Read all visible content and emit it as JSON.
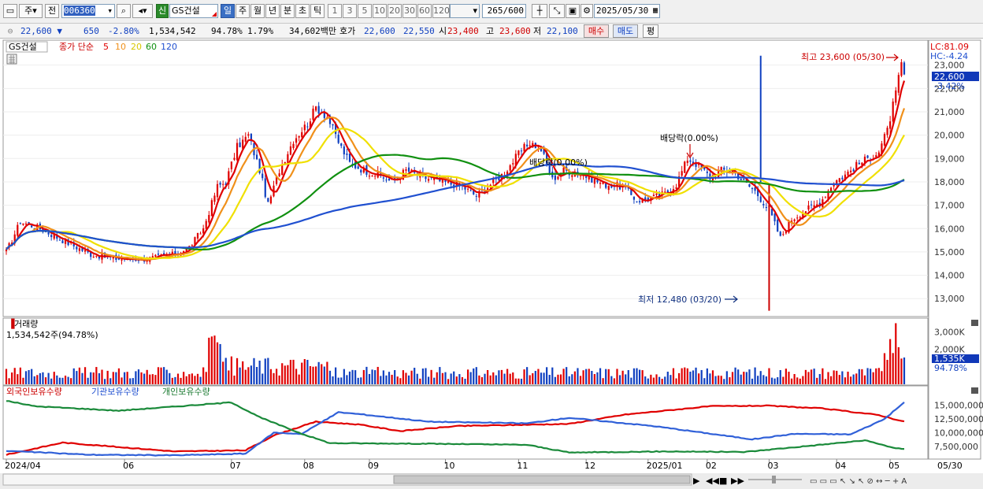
{
  "toolbar": {
    "market_label": "주",
    "prev_label": "전",
    "code_value": "006360",
    "new_badge": "신",
    "stock_name": "GS건설",
    "periods": [
      "일",
      "주",
      "월",
      "년",
      "분",
      "초",
      "틱"
    ],
    "selected_period": "일",
    "intervals": [
      "1",
      "3",
      "5",
      "10",
      "20",
      "30",
      "60",
      "120"
    ],
    "count_value": "265",
    "count_total": "/600",
    "date_value": "2025/05/30"
  },
  "info": {
    "price": "22,600",
    "change_arrow": "▼",
    "change": "650",
    "change_pct": "-2.80%",
    "volume": "1,534,542",
    "volume_ratio": "94.78%",
    "turnover": "1.79%",
    "amount": "34,602백만",
    "quote_label": "호가",
    "ask": "22,600",
    "bid": "22,550",
    "open_label": "시",
    "open": "23,400",
    "high_label": "고",
    "high": "23,600",
    "low_label": "저",
    "low": "22,100",
    "buy_button": "매수",
    "sell_button": "매도",
    "eval_button": "평"
  },
  "legend": {
    "stock": "GS건설",
    "close_label": "종가 단순",
    "ma_labels": [
      "5",
      "10",
      "20",
      "60",
      "120"
    ]
  },
  "colors": {
    "ma5": "#e00000",
    "ma10": "#f0901a",
    "ma20": "#f0e000",
    "ma60": "#109010",
    "ma120": "#2050d0",
    "up": "#e00000",
    "down": "#1040c0",
    "foreign": "#e00000",
    "institution": "#3060d8",
    "individual": "#1a8a3a"
  },
  "right_axis": {
    "lc": "LC:81.09",
    "hc": "HC:-4.24",
    "price_tag": "22,600",
    "pct_tag": "-3.42%",
    "vol_tag": "1,535K",
    "vol_pct_tag": "94.78%"
  },
  "annotations": {
    "high_text": "최고 23,600 (05/30)",
    "low_text": "최저 12,480 (03/20)",
    "dividend1": "배당락(0.00%)",
    "dividend2": "배당락(0.00%)"
  },
  "volume_panel": {
    "title": "거래량",
    "value_text": "1,534,542주(94.78%)"
  },
  "holding_panel": {
    "foreign": "외국인보유수량",
    "institution": "기관보유수량",
    "individual": "개인보유수량"
  },
  "xaxis_end_label": "05/30",
  "chart_data": {
    "type": "candlestick",
    "price": {
      "axis_ticks": [
        "13,000",
        "14,000",
        "15,000",
        "16,000",
        "17,000",
        "18,000",
        "19,000",
        "20,000",
        "21,000",
        "22,000",
        "23,000"
      ],
      "ylim": [
        12300,
        24000
      ],
      "close_anchors": [
        [
          0,
          15000
        ],
        [
          5,
          16300
        ],
        [
          12,
          16000
        ],
        [
          20,
          15500
        ],
        [
          30,
          14900
        ],
        [
          40,
          14700
        ],
        [
          50,
          14700
        ],
        [
          60,
          14900
        ],
        [
          65,
          15200
        ],
        [
          70,
          16000
        ],
        [
          75,
          17800
        ],
        [
          78,
          18000
        ],
        [
          82,
          19500
        ],
        [
          86,
          20000
        ],
        [
          90,
          18500
        ],
        [
          93,
          17000
        ],
        [
          97,
          18500
        ],
        [
          102,
          19800
        ],
        [
          107,
          20500
        ],
        [
          110,
          21200
        ],
        [
          114,
          20800
        ],
        [
          118,
          19700
        ],
        [
          122,
          18800
        ],
        [
          127,
          18500
        ],
        [
          132,
          18300
        ],
        [
          137,
          18000
        ],
        [
          142,
          18500
        ],
        [
          148,
          18200
        ],
        [
          155,
          18000
        ],
        [
          162,
          17800
        ],
        [
          167,
          17400
        ],
        [
          172,
          17900
        ],
        [
          177,
          18400
        ],
        [
          182,
          19200
        ],
        [
          186,
          19700
        ],
        [
          190,
          19400
        ],
        [
          194,
          18100
        ],
        [
          198,
          18500
        ],
        [
          205,
          18300
        ],
        [
          212,
          17900
        ],
        [
          219,
          17800
        ],
        [
          224,
          17200
        ],
        [
          229,
          17300
        ],
        [
          234,
          17500
        ],
        [
          238,
          17900
        ],
        [
          242,
          19000
        ],
        [
          246,
          18700
        ],
        [
          250,
          18200
        ],
        [
          254,
          18500
        ],
        [
          258,
          18500
        ],
        [
          262,
          18000
        ],
        [
          266,
          17600
        ],
        [
          271,
          16800
        ],
        [
          275,
          15600
        ],
        [
          279,
          16400
        ],
        [
          284,
          16800
        ],
        [
          289,
          17100
        ],
        [
          294,
          18000
        ],
        [
          298,
          18300
        ],
        [
          302,
          18700
        ],
        [
          306,
          19000
        ],
        [
          310,
          19300
        ],
        [
          313,
          20200
        ],
        [
          316,
          21800
        ],
        [
          318,
          23000
        ],
        [
          319,
          22600
        ]
      ],
      "ma_series": [
        "5",
        "10",
        "20",
        "60",
        "120"
      ],
      "high_marker": {
        "value": 23600,
        "date": "05/30"
      },
      "low_marker": {
        "value": 12480,
        "date": "03/20"
      }
    },
    "volume": {
      "axis_ticks": [
        "2,000K",
        "3,000K"
      ],
      "ylim": [
        0,
        3700000
      ],
      "last_value": 1534542
    },
    "holdings": {
      "axis_ticks": [
        "7,500,000",
        "10,000,000",
        "12,500,000",
        "15,000,000"
      ],
      "ylim": [
        5500000,
        16500000
      ],
      "series": [
        {
          "name": "외국인보유수량",
          "anchors": [
            [
              0,
              6000000
            ],
            [
              20,
              8200000
            ],
            [
              60,
              6600000
            ],
            [
              85,
              6800000
            ],
            [
              95,
              9500000
            ],
            [
              110,
              12000000
            ],
            [
              125,
              11500000
            ],
            [
              140,
              10300000
            ],
            [
              160,
              11200000
            ],
            [
              200,
              11600000
            ],
            [
              220,
              13300000
            ],
            [
              250,
              14800000
            ],
            [
              270,
              14900000
            ],
            [
              290,
              14400000
            ],
            [
              310,
              13200000
            ],
            [
              319,
              12000000
            ]
          ]
        },
        {
          "name": "기관보유수량",
          "anchors": [
            [
              0,
              6700000
            ],
            [
              30,
              6000000
            ],
            [
              60,
              5900000
            ],
            [
              85,
              6200000
            ],
            [
              95,
              10000000
            ],
            [
              105,
              9800000
            ],
            [
              118,
              13700000
            ],
            [
              125,
              13400000
            ],
            [
              150,
              12000000
            ],
            [
              185,
              11700000
            ],
            [
              200,
              12700000
            ],
            [
              230,
              11200000
            ],
            [
              265,
              8800000
            ],
            [
              280,
              9800000
            ],
            [
              300,
              9700000
            ],
            [
              312,
              12500000
            ],
            [
              319,
              15500000
            ]
          ]
        },
        {
          "name": "개인보유수량",
          "anchors": [
            [
              0,
              15800000
            ],
            [
              10,
              14800000
            ],
            [
              40,
              14000000
            ],
            [
              80,
              15500000
            ],
            [
              90,
              12800000
            ],
            [
              105,
              9800000
            ],
            [
              115,
              8100000
            ],
            [
              150,
              8000000
            ],
            [
              185,
              7800000
            ],
            [
              200,
              6400000
            ],
            [
              235,
              6600000
            ],
            [
              262,
              6500000
            ],
            [
              285,
              7600000
            ],
            [
              305,
              8600000
            ],
            [
              315,
              7300000
            ],
            [
              319,
              7000000
            ]
          ]
        }
      ]
    },
    "x_ticks": [
      "2024/04",
      "06",
      "07",
      "08",
      "09",
      "10",
      "11",
      "12",
      "2025/01",
      "02",
      "03",
      "04",
      "05"
    ]
  }
}
